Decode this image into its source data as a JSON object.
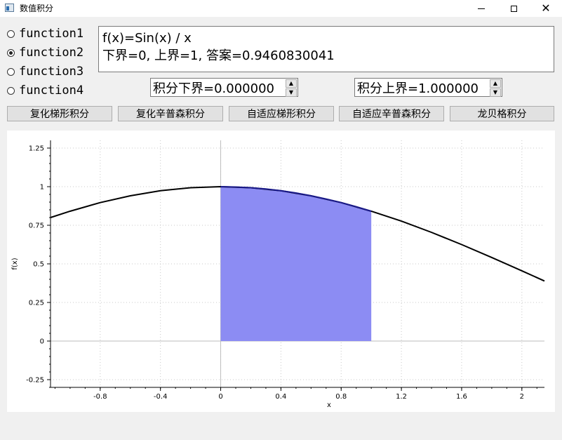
{
  "window": {
    "title": "数值积分"
  },
  "functions": [
    {
      "label": "function1",
      "checked": false
    },
    {
      "label": "function2",
      "checked": true
    },
    {
      "label": "function3",
      "checked": false
    },
    {
      "label": "function4",
      "checked": false
    }
  ],
  "output": {
    "line1": "f(x)=Sin(x) / x",
    "line2": "下界=0, 上界=1, 答案=0.9460830041"
  },
  "lower_bound": {
    "value": "积分下界=0.000000"
  },
  "upper_bound": {
    "value": "积分上界=1.000000"
  },
  "buttons": {
    "composite_trapezoid": "复化梯形积分",
    "composite_simpson": "复化辛普森积分",
    "adaptive_trapezoid": "自适应梯形积分",
    "adaptive_simpson": "自适应辛普森积分",
    "romberg": "龙贝格积分"
  },
  "chart_data": {
    "type": "area",
    "xlabel": "x",
    "ylabel": "f(x)",
    "xlim": [
      -1.13,
      2.15
    ],
    "ylim": [
      -0.3,
      1.3
    ],
    "x_ticks": [
      -0.8,
      -0.4,
      0,
      0.4,
      0.8,
      1.2,
      1.6,
      2
    ],
    "x_tick_labels": [
      "-0.8",
      "-0.4",
      "0",
      "0.4",
      "0.8",
      "1.2",
      "1.6",
      "2"
    ],
    "y_ticks": [
      -0.25,
      0,
      0.25,
      0.5,
      0.75,
      1,
      1.25
    ],
    "y_tick_labels": [
      "-0.25",
      "0",
      "0.25",
      "0.5",
      "0.75",
      "1",
      "1.25"
    ],
    "grid": true,
    "series": [
      {
        "type": "line",
        "x": [
          -1.13,
          -1.0,
          -0.8,
          -0.6,
          -0.4,
          -0.2,
          0,
          0.2,
          0.4,
          0.6,
          0.8,
          1.0,
          1.2,
          1.4,
          1.6,
          1.8,
          2.0,
          2.15
        ],
        "y": [
          0.8,
          0.841,
          0.897,
          0.941,
          0.974,
          0.993,
          1.0,
          0.993,
          0.974,
          0.941,
          0.897,
          0.841,
          0.777,
          0.704,
          0.625,
          0.541,
          0.455,
          0.389
        ],
        "color": "#000000"
      },
      {
        "type": "area",
        "x": [
          0,
          0.1,
          0.2,
          0.3,
          0.4,
          0.5,
          0.6,
          0.7,
          0.8,
          0.9,
          1.0
        ],
        "y": [
          1.0,
          0.998,
          0.993,
          0.985,
          0.974,
          0.959,
          0.941,
          0.92,
          0.897,
          0.87,
          0.841
        ],
        "color": "#8c8cf3"
      }
    ]
  }
}
